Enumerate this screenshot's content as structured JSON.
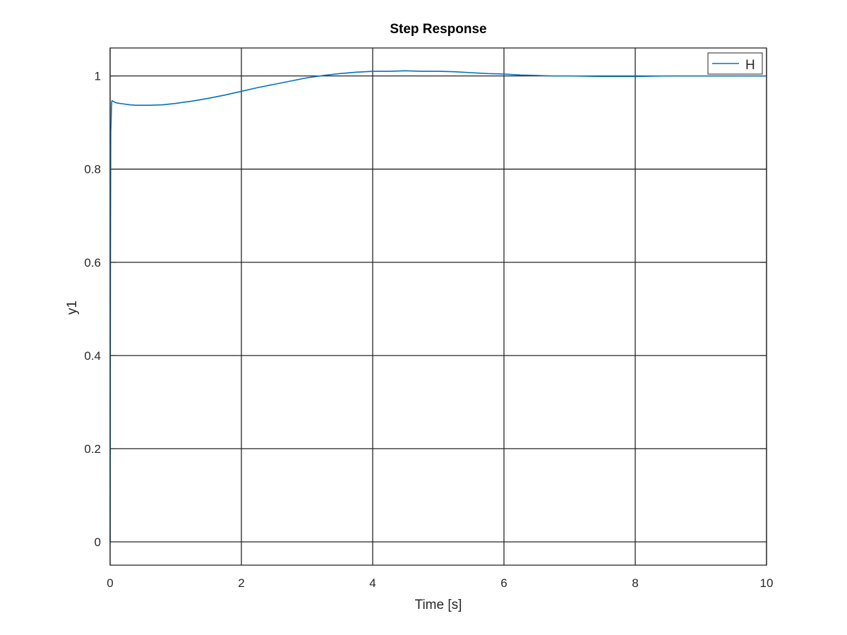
{
  "chart_data": {
    "type": "line",
    "title": "Step Response",
    "xlabel": "Time [s]",
    "ylabel": "y1",
    "xlim": [
      0,
      10
    ],
    "ylim": [
      -0.05,
      1.06
    ],
    "x_ticks": [
      0,
      2,
      4,
      6,
      8,
      10
    ],
    "x_tick_labels": [
      "0",
      "2",
      "4",
      "6",
      "8",
      "10"
    ],
    "y_ticks": [
      0,
      0.2,
      0.4,
      0.6,
      0.8,
      1
    ],
    "y_tick_labels": [
      "0",
      "0.2",
      "0.4",
      "0.6",
      "0.8",
      "1"
    ],
    "grid": true,
    "legend_position": "top-right",
    "series": [
      {
        "name": "H",
        "color": "#0072BD",
        "x": [
          0,
          0.005,
          0.01,
          0.015,
          0.02,
          0.025,
          0.03,
          0.04,
          0.05,
          0.08,
          0.1,
          0.2,
          0.3,
          0.4,
          0.5,
          0.6,
          0.8,
          1.0,
          1.25,
          1.5,
          1.75,
          2.0,
          2.25,
          2.5,
          2.75,
          3.0,
          3.25,
          3.5,
          3.75,
          4.0,
          4.25,
          4.5,
          4.75,
          5.0,
          5.25,
          5.5,
          5.75,
          6.0,
          6.25,
          6.5,
          6.75,
          7.0,
          7.5,
          8.0,
          8.5,
          9.0,
          9.5,
          10.0
        ],
        "y": [
          0,
          0.58,
          0.88,
          0.9,
          0.93,
          0.945,
          0.947,
          0.946,
          0.945,
          0.943,
          0.942,
          0.94,
          0.938,
          0.937,
          0.937,
          0.937,
          0.938,
          0.941,
          0.946,
          0.952,
          0.959,
          0.967,
          0.975,
          0.982,
          0.989,
          0.996,
          1.001,
          1.005,
          1.008,
          1.01,
          1.01,
          1.011,
          1.01,
          1.01,
          1.009,
          1.007,
          1.005,
          1.004,
          1.002,
          1.001,
          1.0,
          1.0,
          0.999,
          0.999,
          1.0,
          1.0,
          1.0,
          1.0
        ]
      }
    ]
  }
}
